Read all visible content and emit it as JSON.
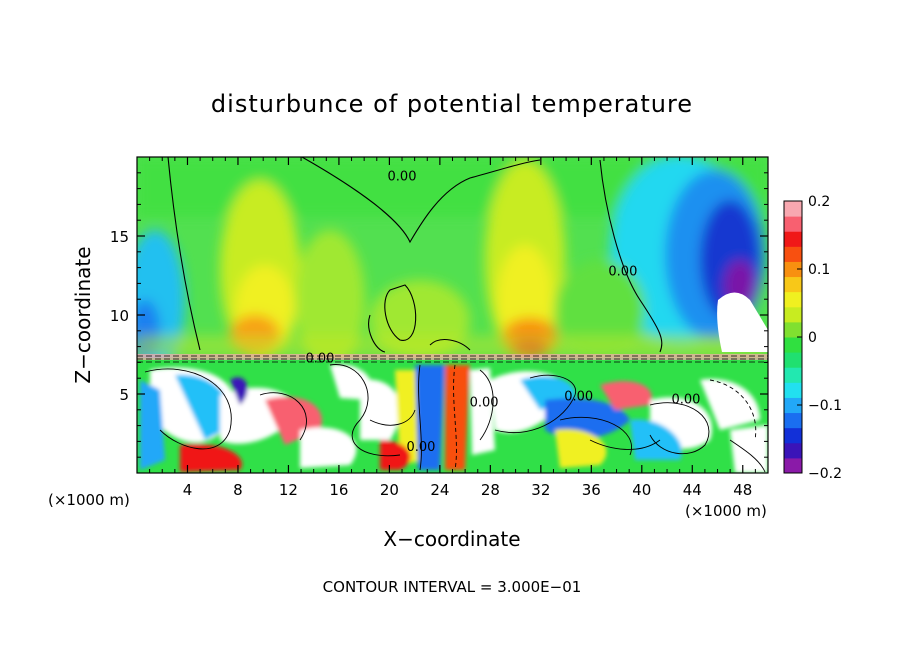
{
  "chart_data": {
    "type": "heatmap",
    "title": "disturbunce of potential temperature",
    "xlabel": "X−coordinate",
    "ylabel": "Z−coordinate",
    "x_unit_left": "(×1000 m)",
    "x_unit_right": "(×1000 m)",
    "xlim": [
      0,
      50
    ],
    "ylim": [
      0,
      20
    ],
    "xticks": [
      {
        "value": 4,
        "label": "4"
      },
      {
        "value": 8,
        "label": "8"
      },
      {
        "value": 12,
        "label": "12"
      },
      {
        "value": 16,
        "label": "16"
      },
      {
        "value": 20,
        "label": "20"
      },
      {
        "value": 24,
        "label": "24"
      },
      {
        "value": 28,
        "label": "28"
      },
      {
        "value": 32,
        "label": "32"
      },
      {
        "value": 36,
        "label": "36"
      },
      {
        "value": 40,
        "label": "40"
      },
      {
        "value": 44,
        "label": "44"
      },
      {
        "value": 48,
        "label": "48"
      }
    ],
    "yticks": [
      {
        "value": 5,
        "label": "5"
      },
      {
        "value": 10,
        "label": "10"
      },
      {
        "value": 15,
        "label": "15"
      }
    ],
    "colorbar": {
      "min": -0.2,
      "max": 0.2,
      "ticks": [
        {
          "value": 0.2,
          "label": "0.2"
        },
        {
          "value": 0.1,
          "label": "0.1"
        },
        {
          "value": 0,
          "label": "0"
        },
        {
          "value": -0.1,
          "label": "−0.1"
        },
        {
          "value": -0.2,
          "label": "−0.2"
        }
      ],
      "colors": [
        "#8a1aa8",
        "#3a14b8",
        "#1230d8",
        "#1a6ef0",
        "#22a8f8",
        "#22e0f0",
        "#22e8b0",
        "#20e070",
        "#30e040",
        "#80e030",
        "#c8ec20",
        "#f0f020",
        "#f8c818",
        "#f89010",
        "#f85010",
        "#f01818",
        "#f86070",
        "#f8a8b0"
      ]
    },
    "contour_labels": [
      {
        "x": 21.0,
        "z": 18.5,
        "label": "0.00"
      },
      {
        "x": 38.5,
        "z": 12.5,
        "label": "0.00"
      },
      {
        "x": 14.5,
        "z": 7.0,
        "label": "0.00"
      },
      {
        "x": 35.0,
        "z": 4.6,
        "label": "0.00"
      },
      {
        "x": 43.5,
        "z": 4.4,
        "label": "0.00"
      },
      {
        "x": 22.5,
        "z": 1.4,
        "label": "0.00"
      },
      {
        "x": 27.5,
        "z": 4.2,
        "label": "0.00"
      }
    ],
    "footer": "CONTOUR INTERVAL = 3.000E−01"
  }
}
